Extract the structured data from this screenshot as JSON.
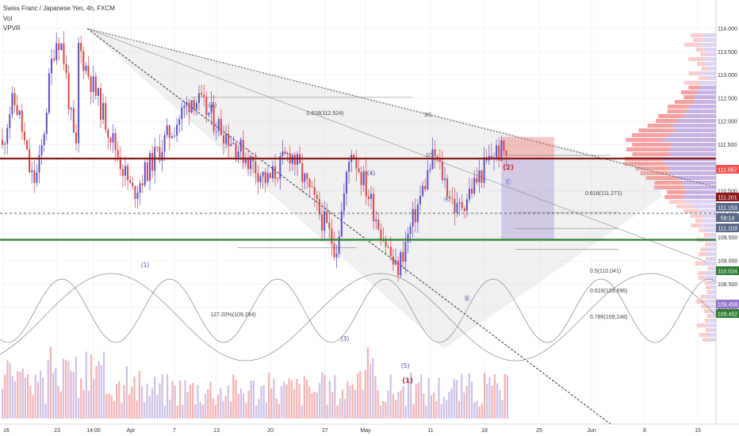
{
  "header": {
    "symbol_line": "Swiss Franc / Japanese Yen, 4h, FXCM",
    "vol_label": "Vol",
    "vpvr_label": "VPVR"
  },
  "chart_data": {
    "type": "candlestick",
    "title": "Swiss Franc / Japanese Yen, 4h, FXCM",
    "ylim": [
      107.55,
      114.15
    ],
    "y_ticks": [
      "114.000",
      "113.500",
      "113.000",
      "112.500",
      "112.000",
      "111.500",
      "111.000",
      "110.500",
      "110.000",
      "109.500",
      "109.000",
      "108.500",
      "108.000"
    ],
    "x_ticks": [
      "16",
      "23",
      "14:00",
      "Apr",
      "7",
      "13",
      "20",
      "27",
      "May",
      "11",
      "18",
      "25",
      "Jun",
      "8",
      "15"
    ],
    "price_labels": [
      {
        "text": "111.667",
        "color": "#ef5350"
      },
      {
        "text": "111.201",
        "color": "#8b1a1a"
      },
      {
        "text": "111.153",
        "color": "#5a6a8a"
      },
      {
        "text": "58:14",
        "color": "#5a6a8a"
      },
      {
        "text": "111.103",
        "color": "#5a6a8a"
      },
      {
        "text": "110.024",
        "color": "#2e7d32"
      },
      {
        "text": "109.458",
        "color": "#9575cd"
      },
      {
        "text": "109.452",
        "color": "#2e7d32"
      }
    ],
    "wave_labels": [
      {
        "text": "(1)",
        "color": "#3f3fa0"
      },
      {
        "text": "(2)",
        "color": "#3f3fa0"
      },
      {
        "text": "(3)",
        "color": "#3f3fa0"
      },
      {
        "text": "(4)",
        "color": "#3f3fa0"
      },
      {
        "text": "(5)",
        "color": "#3f3fa0"
      },
      {
        "text": "(1)",
        "color": "#c62828"
      },
      {
        "text": "(2)",
        "color": "#c62828"
      },
      {
        "text": "Ⓐ",
        "color": "#3f3fa0"
      },
      {
        "text": "Ⓑ",
        "color": "#3f3fa0"
      },
      {
        "text": "Ⓒ",
        "color": "#3f3fa0"
      }
    ],
    "annotations": [
      "0.618(112.524)",
      "0.618(111.271)",
      "0.5(110.041)",
      "0.618(109.696)",
      "0.786(109.248)",
      "127.20%(109.284)",
      "3/1",
      "2/1"
    ],
    "levels": {
      "red_line": 111.201,
      "green_upper": 110.024,
      "green_lower": 109.452
    },
    "position": {
      "entry": 111.201,
      "stop": 111.667,
      "target": 109.458,
      "start_date": "May 21",
      "end_date": "May 28"
    },
    "swing_points": [
      {
        "date": "Mar 13",
        "price": 111.45
      },
      {
        "date": "Mar 25",
        "price": 114.0
      },
      {
        "date": "Apr 2",
        "price": 110.45
      },
      {
        "date": "Apr 10",
        "price": 112.55
      },
      {
        "date": "Apr 20",
        "price": 110.7
      },
      {
        "date": "Apr 23",
        "price": 111.35
      },
      {
        "date": "Apr 29",
        "price": 109.25
      },
      {
        "date": "May 1",
        "price": 111.45
      },
      {
        "date": "May 7",
        "price": 108.75
      },
      {
        "date": "May 12",
        "price": 111.3
      },
      {
        "date": "May 15",
        "price": 110.05
      },
      {
        "date": "May 20",
        "price": 111.35
      }
    ]
  }
}
